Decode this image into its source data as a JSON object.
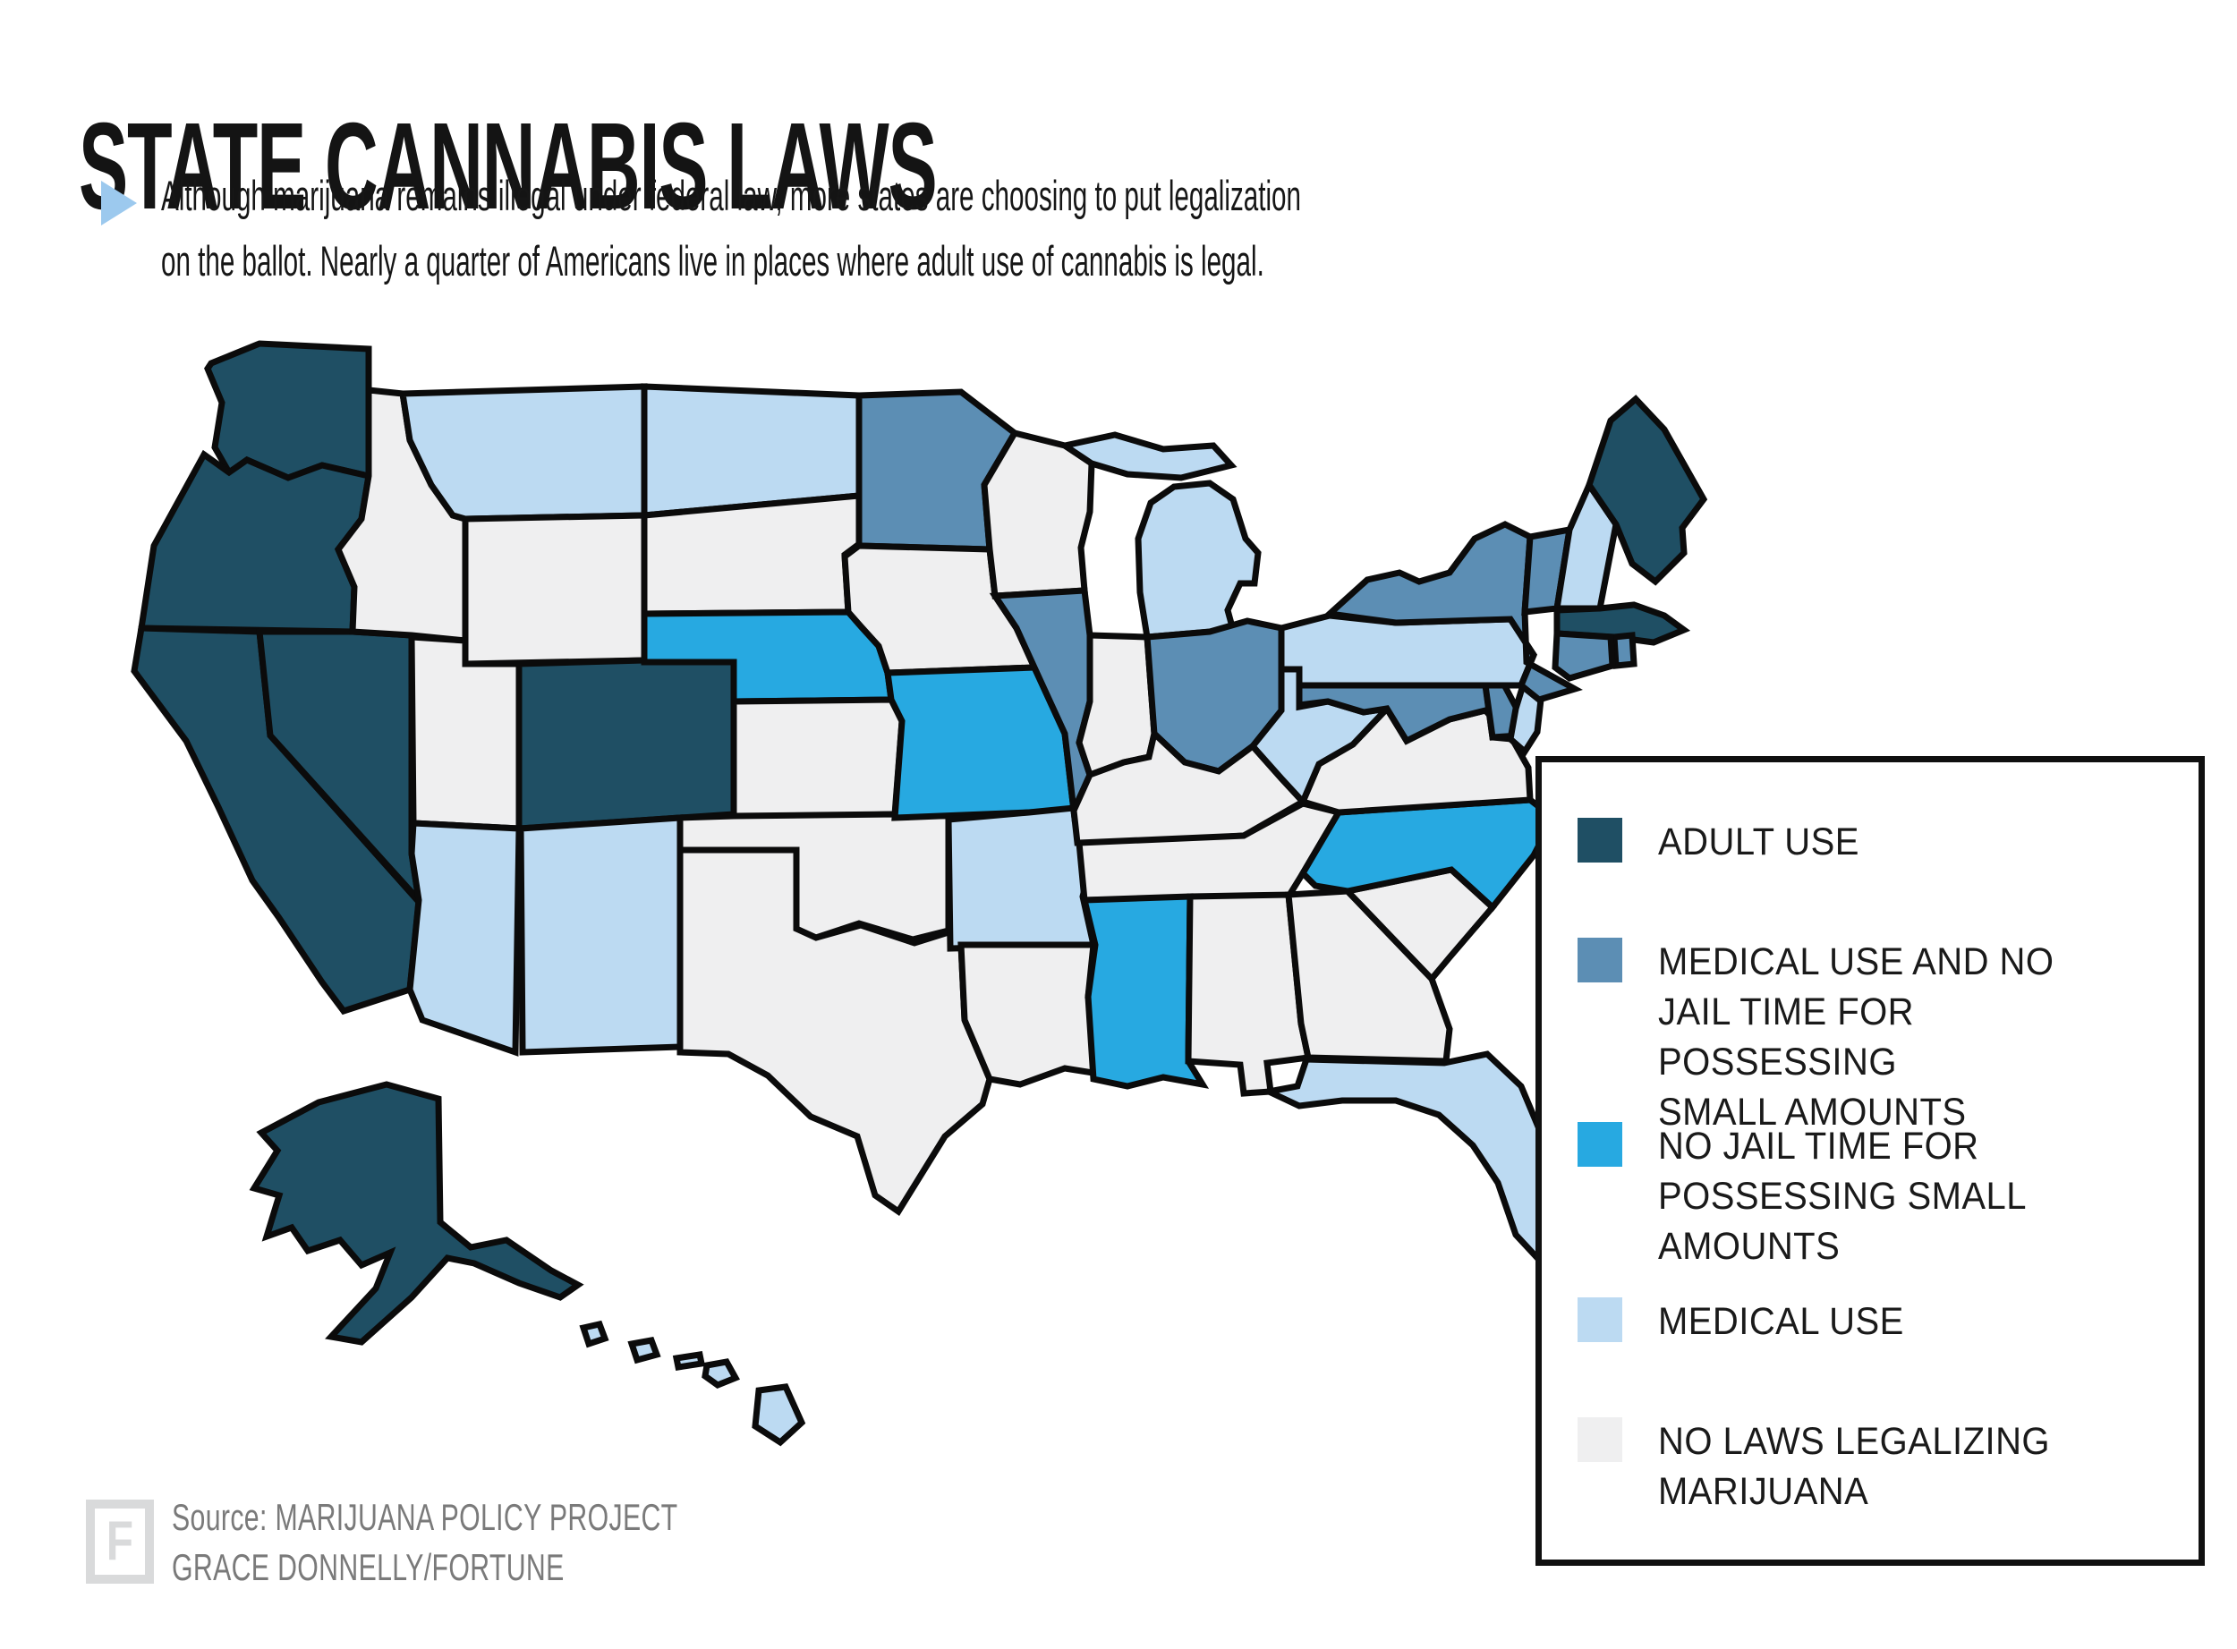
{
  "title": "STATE CANNABIS LAWS",
  "subtitle": {
    "bullet_icon": "play-triangle-bullet",
    "bullet_color": "#9cc9ee",
    "line1": "Although marijuana remains illegal under federal law, more states are choosing to put legalization",
    "line2": "on the ballot.  Nearly a quarter of Americans live in places where adult use of cannabis is legal."
  },
  "legend": {
    "items": [
      {
        "key": "adult_use",
        "label": "ADULT USE",
        "color": "#1f4f64"
      },
      {
        "key": "medical_decrim",
        "label": "MEDICAL USE AND NO\nJAIL TIME FOR POSSESSING\nSMALL AMOUNTS",
        "color": "#5c8eb4"
      },
      {
        "key": "decrim",
        "label": "NO JAIL TIME FOR\nPOSSESSING SMALL\nAMOUNTS",
        "color": "#27a9e1"
      },
      {
        "key": "medical",
        "label": "MEDICAL USE",
        "color": "#bcdaf2"
      },
      {
        "key": "no_laws",
        "label": "NO LAWS LEGALIZING\nMARIJUANA",
        "color": "#efeff0"
      }
    ]
  },
  "source": {
    "logo_letter": "F",
    "line1": "Source: MARIJUANA POLICY PROJECT",
    "line2": "GRACE DONNELLY/FORTUNE"
  },
  "chart_data": {
    "type": "heatmap",
    "subtype": "us-state-choropleth",
    "title": "STATE CANNABIS LAWS",
    "border_color": "#0b0b0b",
    "categories": {
      "adult_use": {
        "label": "ADULT USE",
        "color": "#1f4f64"
      },
      "medical_decrim": {
        "label": "MEDICAL USE AND NO JAIL TIME FOR POSSESSING SMALL AMOUNTS",
        "color": "#5c8eb4"
      },
      "decrim": {
        "label": "NO JAIL TIME FOR POSSESSING SMALL AMOUNTS",
        "color": "#27a9e1"
      },
      "medical": {
        "label": "MEDICAL USE",
        "color": "#bcdaf2"
      },
      "no_laws": {
        "label": "NO LAWS LEGALIZING MARIJUANA",
        "color": "#efeff0"
      }
    },
    "states": [
      {
        "abbr": "WA",
        "name": "Washington",
        "category": "adult_use"
      },
      {
        "abbr": "OR",
        "name": "Oregon",
        "category": "adult_use"
      },
      {
        "abbr": "CA",
        "name": "California",
        "category": "adult_use"
      },
      {
        "abbr": "NV",
        "name": "Nevada",
        "category": "adult_use"
      },
      {
        "abbr": "ID",
        "name": "Idaho",
        "category": "no_laws"
      },
      {
        "abbr": "MT",
        "name": "Montana",
        "category": "medical"
      },
      {
        "abbr": "WY",
        "name": "Wyoming",
        "category": "no_laws"
      },
      {
        "abbr": "UT",
        "name": "Utah",
        "category": "no_laws"
      },
      {
        "abbr": "CO",
        "name": "Colorado",
        "category": "adult_use"
      },
      {
        "abbr": "AZ",
        "name": "Arizona",
        "category": "medical"
      },
      {
        "abbr": "NM",
        "name": "New Mexico",
        "category": "medical"
      },
      {
        "abbr": "ND",
        "name": "North Dakota",
        "category": "medical"
      },
      {
        "abbr": "SD",
        "name": "South Dakota",
        "category": "no_laws"
      },
      {
        "abbr": "NE",
        "name": "Nebraska",
        "category": "decrim"
      },
      {
        "abbr": "KS",
        "name": "Kansas",
        "category": "no_laws"
      },
      {
        "abbr": "OK",
        "name": "Oklahoma",
        "category": "no_laws"
      },
      {
        "abbr": "TX",
        "name": "Texas",
        "category": "no_laws"
      },
      {
        "abbr": "MN",
        "name": "Minnesota",
        "category": "medical_decrim"
      },
      {
        "abbr": "IA",
        "name": "Iowa",
        "category": "no_laws"
      },
      {
        "abbr": "MO",
        "name": "Missouri",
        "category": "decrim"
      },
      {
        "abbr": "AR",
        "name": "Arkansas",
        "category": "medical"
      },
      {
        "abbr": "LA",
        "name": "Louisiana",
        "category": "no_laws"
      },
      {
        "abbr": "WI",
        "name": "Wisconsin",
        "category": "no_laws"
      },
      {
        "abbr": "IL",
        "name": "Illinois",
        "category": "medical_decrim"
      },
      {
        "abbr": "MI",
        "name": "Michigan",
        "category": "medical"
      },
      {
        "abbr": "IN",
        "name": "Indiana",
        "category": "no_laws"
      },
      {
        "abbr": "OH",
        "name": "Ohio",
        "category": "medical_decrim"
      },
      {
        "abbr": "KY",
        "name": "Kentucky",
        "category": "no_laws"
      },
      {
        "abbr": "TN",
        "name": "Tennessee",
        "category": "no_laws"
      },
      {
        "abbr": "MS",
        "name": "Mississippi",
        "category": "decrim"
      },
      {
        "abbr": "AL",
        "name": "Alabama",
        "category": "no_laws"
      },
      {
        "abbr": "GA",
        "name": "Georgia",
        "category": "no_laws"
      },
      {
        "abbr": "FL",
        "name": "Florida",
        "category": "medical"
      },
      {
        "abbr": "SC",
        "name": "South Carolina",
        "category": "no_laws"
      },
      {
        "abbr": "NC",
        "name": "North Carolina",
        "category": "decrim"
      },
      {
        "abbr": "VA",
        "name": "Virginia",
        "category": "no_laws"
      },
      {
        "abbr": "WV",
        "name": "West Virginia",
        "category": "medical"
      },
      {
        "abbr": "MD",
        "name": "Maryland",
        "category": "medical_decrim"
      },
      {
        "abbr": "DE",
        "name": "Delaware",
        "category": "medical_decrim"
      },
      {
        "abbr": "PA",
        "name": "Pennsylvania",
        "category": "medical"
      },
      {
        "abbr": "NJ",
        "name": "New Jersey",
        "category": "medical"
      },
      {
        "abbr": "NY",
        "name": "New York",
        "category": "medical_decrim"
      },
      {
        "abbr": "VT",
        "name": "Vermont",
        "category": "medical_decrim"
      },
      {
        "abbr": "NH",
        "name": "New Hampshire",
        "category": "medical"
      },
      {
        "abbr": "ME",
        "name": "Maine",
        "category": "adult_use"
      },
      {
        "abbr": "MA",
        "name": "Massachusetts",
        "category": "adult_use"
      },
      {
        "abbr": "RI",
        "name": "Rhode Island",
        "category": "medical_decrim"
      },
      {
        "abbr": "CT",
        "name": "Connecticut",
        "category": "medical_decrim"
      },
      {
        "abbr": "AK",
        "name": "Alaska",
        "category": "adult_use"
      },
      {
        "abbr": "HI",
        "name": "Hawaii",
        "category": "medical"
      }
    ]
  }
}
